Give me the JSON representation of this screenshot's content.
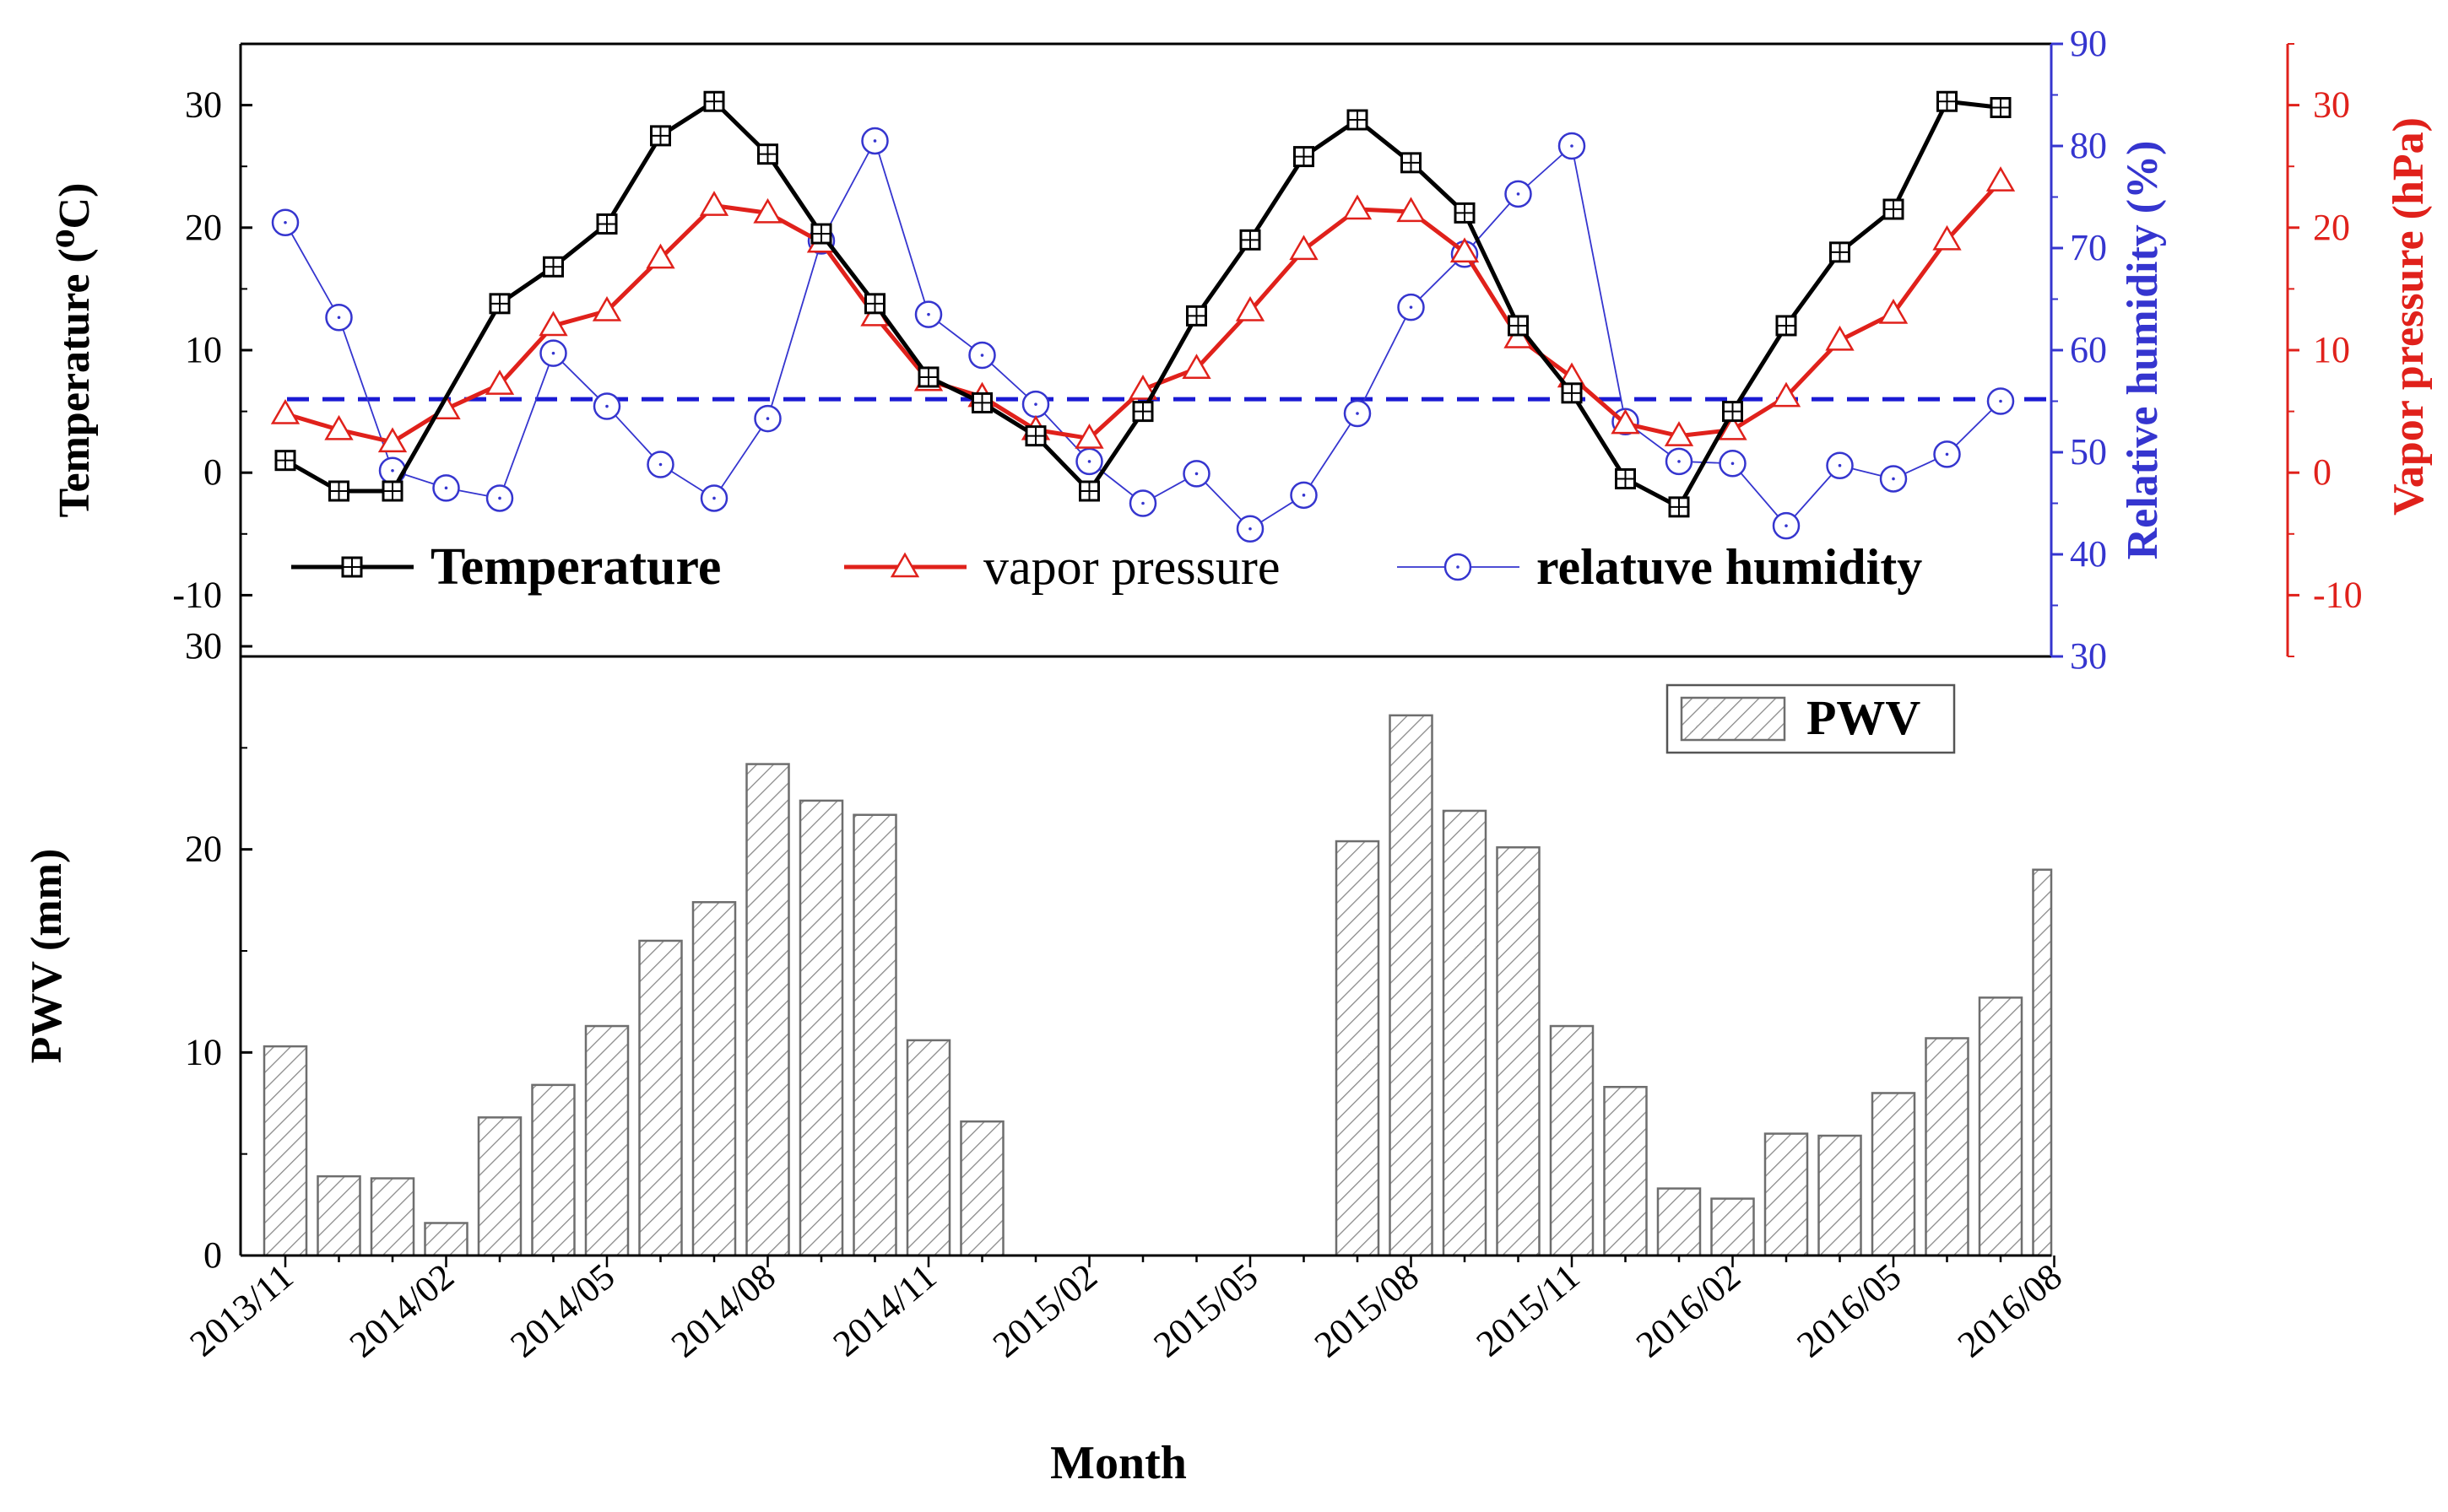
{
  "chart_data": [
    {
      "panel": "top",
      "type": "line",
      "categories": [
        "2013/11",
        "2013/12",
        "2014/01",
        "2014/02",
        "2014/03",
        "2014/04",
        "2014/05",
        "2014/06",
        "2014/07",
        "2014/08",
        "2014/09",
        "2014/10",
        "2014/11",
        "2014/12",
        "2015/01",
        "2015/02",
        "2015/03",
        "2015/04",
        "2015/05",
        "2015/06",
        "2015/07",
        "2015/08",
        "2015/09",
        "2015/10",
        "2015/11",
        "2015/12",
        "2016/01",
        "2016/02",
        "2016/03",
        "2016/04",
        "2016/05",
        "2016/06",
        "2016/07",
        "2016/08"
      ],
      "series": [
        {
          "name": "Temperature",
          "axis": "left",
          "color": "#000000",
          "marker": "square",
          "values": [
            1.0,
            -1.5,
            -1.5,
            null,
            13.8,
            16.8,
            20.3,
            27.5,
            30.3,
            26.0,
            19.5,
            13.8,
            7.8,
            5.7,
            3.0,
            -1.5,
            5.0,
            12.8,
            19.0,
            25.8,
            28.8,
            25.3,
            21.2,
            12.0,
            6.5,
            -0.5,
            -2.8,
            5.0,
            12.0,
            18.0,
            21.5,
            30.3,
            29.8,
            null
          ]
        },
        {
          "name": "vapor pressure",
          "axis": "right_red",
          "color": "#e0211b",
          "marker": "triangle",
          "values": [
            4.8,
            3.5,
            2.5,
            5.2,
            7.2,
            12.0,
            13.2,
            17.5,
            21.8,
            21.2,
            18.8,
            12.8,
            7.5,
            6.2,
            3.5,
            2.8,
            6.8,
            8.5,
            13.2,
            18.2,
            21.5,
            21.3,
            18.0,
            11.0,
            7.8,
            4.0,
            3.0,
            3.5,
            6.2,
            10.8,
            13.0,
            19.0,
            23.8,
            null
          ]
        },
        {
          "name": "relatuve humidity",
          "axis": "right_blue",
          "color": "#3535cf",
          "marker": "circle",
          "values": [
            72.5,
            63.2,
            48.2,
            46.5,
            45.5,
            59.7,
            54.5,
            48.8,
            45.5,
            53.3,
            70.7,
            80.5,
            63.5,
            59.5,
            54.7,
            49.1,
            45.0,
            47.9,
            42.5,
            45.8,
            53.8,
            64.2,
            69.4,
            75.3,
            80.0,
            53.0,
            49.1,
            48.9,
            42.8,
            48.7,
            47.4,
            49.8,
            55.0,
            null
          ]
        }
      ],
      "reference_line": {
        "axis": "left",
        "value": 6.0,
        "style": "dashed",
        "color": "#1a1ad4"
      },
      "ylabel": "Temperature (⁰C)",
      "ylabel_right_blue": "Relative humidity (%)",
      "ylabel_right_red": "Vapor pressure (hPa)",
      "ylim": [
        -15,
        35
      ],
      "ylim_right_blue": [
        30,
        90
      ],
      "ylim_right_red": [
        -15,
        35
      ],
      "yticks": [
        "-10",
        "0",
        "10",
        "20",
        "30"
      ],
      "yticks_right_blue": [
        "30",
        "40",
        "50",
        "60",
        "70",
        "80",
        "90"
      ],
      "yticks_right_red": [
        "-10",
        "0",
        "10",
        "20",
        "30"
      ],
      "legend": {
        "position": "bottom",
        "labels": [
          "Temperature",
          "vapor pressure",
          "relatuve humidity"
        ]
      }
    },
    {
      "panel": "bottom",
      "type": "bar",
      "pattern": "hatched",
      "categories": [
        "2013/11",
        "2013/12",
        "2014/01",
        "2014/02",
        "2014/03",
        "2014/04",
        "2014/05",
        "2014/06",
        "2014/07",
        "2014/08",
        "2014/09",
        "2014/10",
        "2014/11",
        "2014/12",
        "2015/01",
        "2015/02",
        "2015/03",
        "2015/04",
        "2015/05",
        "2015/06",
        "2015/07",
        "2015/08",
        "2015/09",
        "2015/10",
        "2015/11",
        "2015/12",
        "2016/01",
        "2016/02",
        "2016/03",
        "2016/04",
        "2016/05",
        "2016/06",
        "2016/07",
        "2016/08"
      ],
      "series": [
        {
          "name": "PWV",
          "values": [
            10.3,
            3.9,
            3.8,
            1.6,
            6.8,
            8.4,
            11.3,
            15.5,
            17.4,
            24.2,
            22.4,
            21.7,
            10.6,
            6.6,
            null,
            null,
            null,
            null,
            null,
            null,
            20.4,
            26.6,
            21.9,
            20.1,
            11.3,
            8.3,
            3.3,
            2.8,
            6.0,
            5.9,
            8.0,
            10.7,
            12.7,
            19.0
          ]
        }
      ],
      "ylabel": "PWV (mm)",
      "xlabel": "Month",
      "ylim": [
        0,
        30
      ],
      "yticks": [
        "0",
        "10",
        "20",
        "30"
      ],
      "xticklabels": [
        "2013/11",
        "2014/02",
        "2014/05",
        "2014/08",
        "2014/11",
        "2015/02",
        "2015/05",
        "2015/08",
        "2015/11",
        "2016/02",
        "2016/05",
        "2016/08"
      ],
      "legend": {
        "position": "top-right",
        "labels": [
          "PWV"
        ]
      }
    }
  ]
}
